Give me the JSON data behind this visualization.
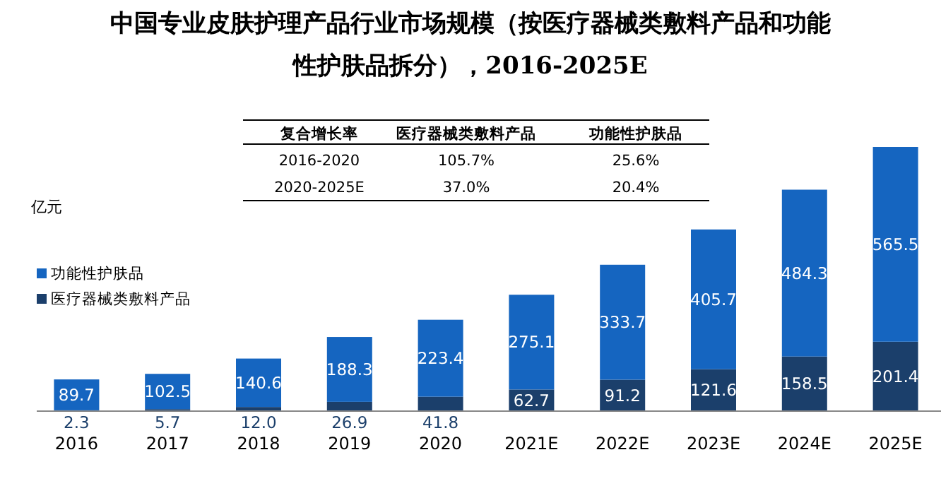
{
  "chart_data": {
    "type": "bar",
    "stacked": true,
    "legend": "left",
    "title": "中国专业皮肤护理产品行业市场规模（按医疗器械类敷料产品和功能性护肤品拆分），2016-2025E",
    "ylabel": "亿元",
    "categories": [
      "2016",
      "2017",
      "2018",
      "2019",
      "2020",
      "2021E",
      "2022E",
      "2023E",
      "2024E",
      "2025E"
    ],
    "series": [
      {
        "name": "医疗器械类敷料产品",
        "color": "#1b3f6b",
        "values": [
          2.3,
          5.7,
          12.0,
          26.9,
          41.8,
          62.7,
          91.2,
          121.6,
          158.5,
          201.4
        ],
        "value_labels": [
          "2.3",
          "5.7",
          "12.0",
          "26.9",
          "41.8",
          "62.7",
          "91.2",
          "121.6",
          "158.5",
          "201.4"
        ]
      },
      {
        "name": "功能性护肤品",
        "color": "#1565c0",
        "values": [
          89.7,
          102.5,
          140.6,
          188.3,
          223.4,
          275.1,
          333.7,
          405.7,
          484.3,
          565.5
        ],
        "value_labels": [
          "89.7",
          "102.5",
          "140.6",
          "188.3",
          "223.4",
          "275.1",
          "333.7",
          "405.7",
          "484.3",
          "565.5"
        ]
      }
    ],
    "annotations": [
      "复合增长率",
      "医疗器械类敷料产品",
      "功能性护肤品",
      "2016-2020",
      "105.7%",
      "25.6%",
      "2020-2025E",
      "37.0%",
      "20.4%"
    ]
  }
}
